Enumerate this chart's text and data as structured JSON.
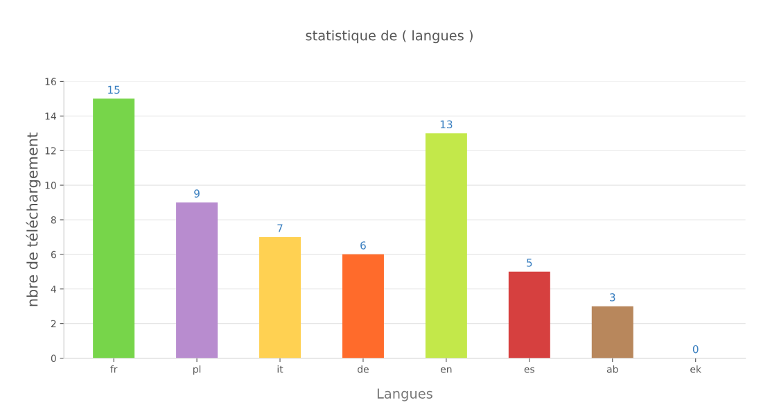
{
  "chart_data": {
    "type": "bar",
    "title": "statistique de ( langues )",
    "xlabel": "Langues",
    "ylabel": "nbre de téléchargement",
    "categories": [
      "fr",
      "pl",
      "it",
      "de",
      "en",
      "es",
      "ab",
      "ek"
    ],
    "values": [
      15,
      9,
      7,
      6,
      13,
      5,
      3,
      0
    ],
    "colors": [
      "#77d54a",
      "#b88ccf",
      "#ffd152",
      "#ff6b2b",
      "#c3e84a",
      "#d6403f",
      "#b8875c",
      "#9e9e9e"
    ],
    "ylim": [
      0,
      16
    ],
    "yticks": [
      0,
      2,
      4,
      6,
      8,
      10,
      12,
      14,
      16
    ],
    "grid": "y",
    "data_labels": true
  }
}
